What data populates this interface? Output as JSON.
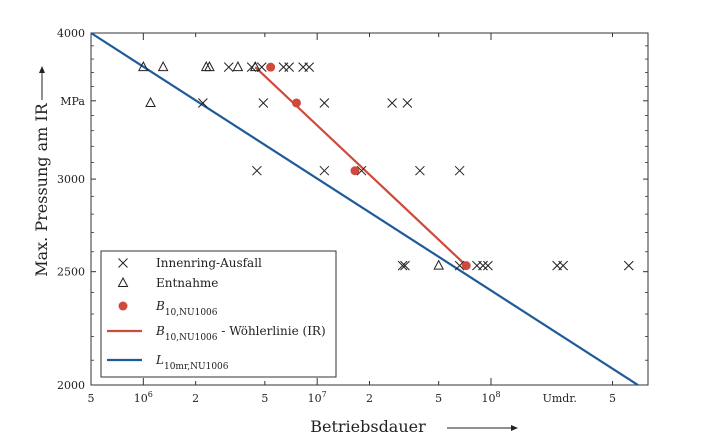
{
  "chart_data": {
    "type": "scatter",
    "xlabel": "Betriebsdauer",
    "ylabel": "Max. Pressung am IR",
    "x_unit_label": "Umdr.",
    "y_unit_label": "MPa",
    "x_scale": "log",
    "y_scale": "log",
    "xlim": [
      500000,
      800000000
    ],
    "ylim": [
      2000,
      4000
    ],
    "grid": false,
    "legend_position": "lower-left",
    "x_ticks": [
      {
        "value": 500000,
        "label": "5",
        "major": false
      },
      {
        "value": 1000000,
        "label": "10^6",
        "major": true
      },
      {
        "value": 2000000,
        "label": "2",
        "major": false
      },
      {
        "value": 5000000,
        "label": "5",
        "major": false
      },
      {
        "value": 10000000,
        "label": "10^7",
        "major": true
      },
      {
        "value": 20000000,
        "label": "2",
        "major": false
      },
      {
        "value": 50000000,
        "label": "5",
        "major": false
      },
      {
        "value": 100000000,
        "label": "10^8",
        "major": true
      },
      {
        "value": 500000000,
        "label": "5",
        "major": false
      }
    ],
    "y_ticks": [
      {
        "value": 2000,
        "label": "2000"
      },
      {
        "value": 2500,
        "label": "2500"
      },
      {
        "value": 3000,
        "label": "3000"
      },
      {
        "value": 3500,
        "label": "MPa"
      },
      {
        "value": 4000,
        "label": "4000"
      }
    ],
    "series": [
      {
        "name": "Innenring-Ausfall",
        "marker": "x",
        "color": "#222222",
        "points": [
          [
            3100000,
            3740
          ],
          [
            4200000,
            3740
          ],
          [
            4800000,
            3740
          ],
          [
            6400000,
            3740
          ],
          [
            6900000,
            3740
          ],
          [
            8300000,
            3740
          ],
          [
            9000000,
            3740
          ],
          [
            2200000,
            3485
          ],
          [
            4900000,
            3485
          ],
          [
            11000000,
            3485
          ],
          [
            27000000,
            3485
          ],
          [
            33000000,
            3485
          ],
          [
            4500000,
            3050
          ],
          [
            11000000,
            3050
          ],
          [
            18000000,
            3050
          ],
          [
            39000000,
            3050
          ],
          [
            66000000,
            3050
          ],
          [
            31000000,
            2530
          ],
          [
            32000000,
            2530
          ],
          [
            66000000,
            2530
          ],
          [
            83000000,
            2530
          ],
          [
            90000000,
            2530
          ],
          [
            96000000,
            2530
          ],
          [
            240000000,
            2530
          ],
          [
            260000000,
            2530
          ],
          [
            620000000,
            2530
          ]
        ]
      },
      {
        "name": "Entnahme",
        "marker": "triangle",
        "color": "#222222",
        "points": [
          [
            1000000,
            3740
          ],
          [
            1300000,
            3740
          ],
          [
            2300000,
            3740
          ],
          [
            2400000,
            3740
          ],
          [
            3500000,
            3740
          ],
          [
            4400000,
            3740
          ],
          [
            1100000,
            3485
          ],
          [
            50000000,
            2530
          ]
        ]
      },
      {
        "name": "B10,NU1006",
        "marker": "circle",
        "color": "#d04a3c",
        "points": [
          [
            5400000,
            3740
          ],
          [
            7600000,
            3485
          ],
          [
            16500000,
            3050
          ],
          [
            72000000,
            2530
          ]
        ]
      },
      {
        "name": "B10,NU1006 - Wöhlerlinie (IR)",
        "type": "line",
        "color": "#d04a3c",
        "points": [
          [
            4400000,
            3740
          ],
          [
            72000000,
            2530
          ]
        ]
      },
      {
        "name": "L10mr,NU1006",
        "type": "line",
        "color": "#1f5a9a",
        "points": [
          [
            500000,
            4000
          ],
          [
            700000000,
            2000
          ]
        ]
      }
    ],
    "legend": [
      {
        "marker": "x",
        "text": "Innenring-Ausfall",
        "sub": "",
        "suffix": ""
      },
      {
        "marker": "triangle",
        "text": "Entnahme",
        "sub": "",
        "suffix": ""
      },
      {
        "marker": "circle",
        "text": "B",
        "sub": "10,NU1006",
        "suffix": ""
      },
      {
        "marker": "redline",
        "text": "B",
        "sub": "10,NU1006",
        "suffix": " - Wöhlerlinie (IR)"
      },
      {
        "marker": "blueline",
        "text": "L",
        "sub": "10mr,NU1006",
        "suffix": ""
      }
    ]
  }
}
